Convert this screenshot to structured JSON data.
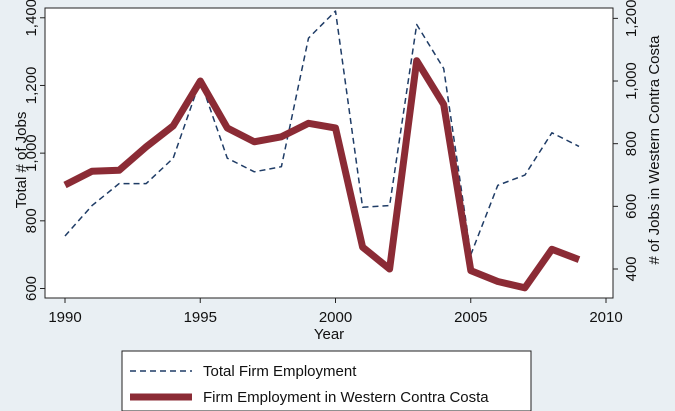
{
  "chart_data": {
    "type": "line",
    "title": "",
    "xlabel": "Year",
    "ylabel_left": "Total # of Jobs",
    "ylabel_right": "# of Jobs in Western Contra Costa",
    "xlim": [
      1990,
      2010
    ],
    "ylim_left": [
      600,
      1400
    ],
    "ylim_right": [
      400,
      1200
    ],
    "x_ticks": [
      1990,
      1995,
      2000,
      2005,
      2010
    ],
    "y_ticks_left": [
      600,
      800,
      1000,
      1200,
      1400
    ],
    "y_ticks_right": [
      400,
      600,
      800,
      1000,
      1200
    ],
    "grid": false,
    "legend_position": "bottom",
    "x": [
      1990,
      1991,
      1992,
      1993,
      1994,
      1995,
      1996,
      1997,
      1998,
      1999,
      2000,
      2001,
      2002,
      2003,
      2004,
      2005,
      2006,
      2007,
      2008,
      2009
    ],
    "series": [
      {
        "name": "Total Firm Employment",
        "axis": "left",
        "style": "dashed",
        "color": "#1f3c66",
        "values": [
          755,
          845,
          910,
          910,
          985,
          1215,
          985,
          945,
          960,
          1340,
          1420,
          840,
          845,
          1380,
          1250,
          700,
          905,
          935,
          1060,
          1020
        ]
      },
      {
        "name": "Firm Employment in Western Contra Costa",
        "axis": "right",
        "style": "solid",
        "color": "#8b2b35",
        "values": [
          668,
          712,
          715,
          790,
          857,
          1000,
          850,
          806,
          822,
          865,
          850,
          470,
          400,
          1065,
          925,
          395,
          360,
          340,
          463,
          430
        ]
      }
    ]
  }
}
